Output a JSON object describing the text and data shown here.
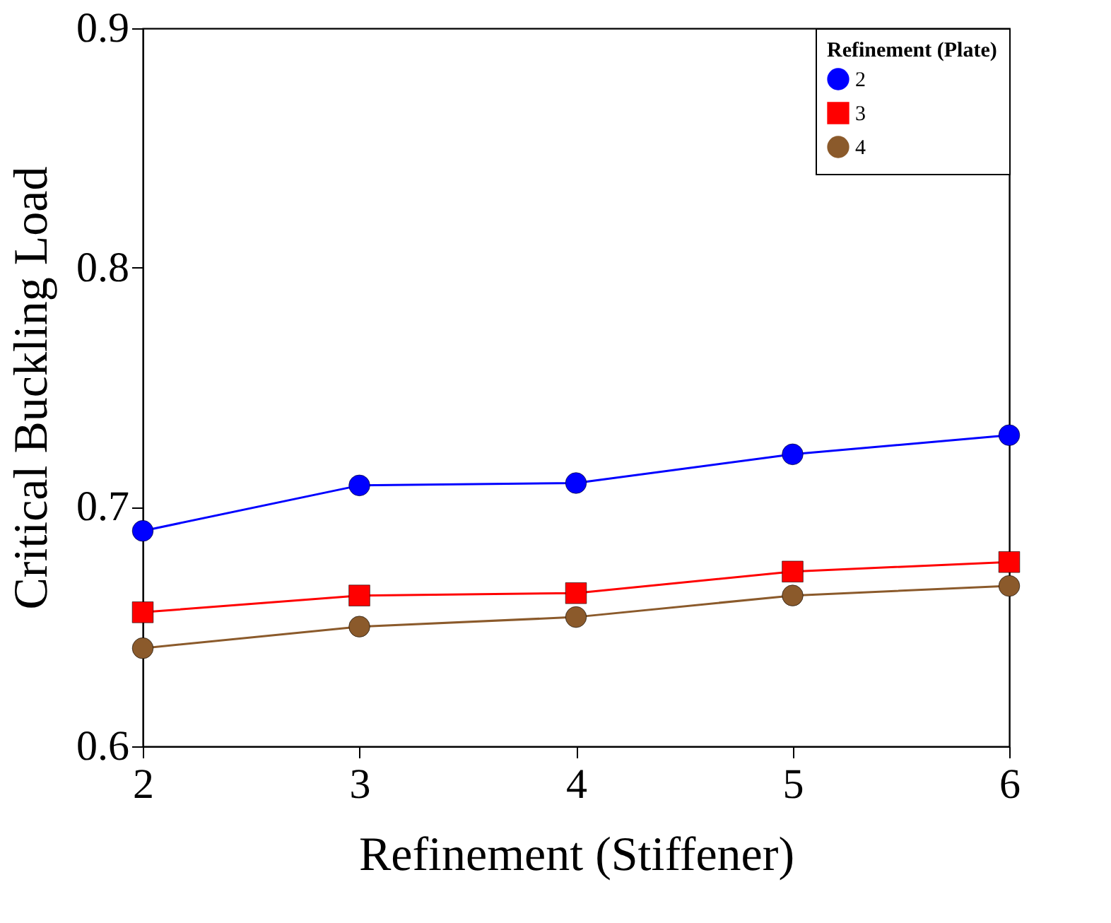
{
  "chart_data": {
    "type": "line",
    "xlabel": "Refinement (Stiffener)",
    "ylabel": "Critical Buckling Load",
    "legend_title": "Refinement (Plate)",
    "x": [
      2,
      3,
      4,
      5,
      6
    ],
    "xlim": [
      2,
      6
    ],
    "xticks": [
      2,
      3,
      4,
      5,
      6
    ],
    "ylim": [
      0.6,
      0.9
    ],
    "yticks": [
      0.6,
      0.7,
      0.8,
      0.9
    ],
    "grid": false,
    "legend": "top right",
    "line_style": "solid",
    "series": [
      {
        "name": "2",
        "color": "#0000ff",
        "marker": "circle",
        "values": [
          0.69,
          0.709,
          0.71,
          0.722,
          0.73
        ]
      },
      {
        "name": "3",
        "color": "#ff0000",
        "marker": "square",
        "values": [
          0.656,
          0.663,
          0.664,
          0.673,
          0.677
        ]
      },
      {
        "name": "4",
        "color": "#8b5a2b",
        "marker": "circle",
        "values": [
          0.641,
          0.65,
          0.654,
          0.663,
          0.667
        ]
      }
    ]
  }
}
